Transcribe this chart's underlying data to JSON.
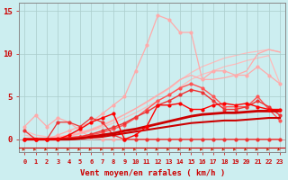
{
  "title": "",
  "xlabel": "Vent moyen/en rafales ( km/h )",
  "ylabel": "",
  "background_color": "#cceef0",
  "grid_color": "#aacccc",
  "x_values": [
    0,
    1,
    2,
    3,
    4,
    5,
    6,
    7,
    8,
    9,
    10,
    11,
    12,
    13,
    14,
    15,
    16,
    17,
    18,
    19,
    20,
    21,
    22,
    23
  ],
  "yticks": [
    0,
    5,
    10,
    15
  ],
  "ylim": [
    -1.5,
    16
  ],
  "xlim": [
    -0.5,
    23.5
  ],
  "series": [
    {
      "y": [
        1.0,
        0.5,
        0.3,
        0.3,
        0.5,
        0.8,
        1.2,
        1.7,
        2.3,
        2.9,
        3.6,
        4.3,
        5.1,
        5.9,
        6.9,
        7.8,
        8.5,
        9.0,
        9.5,
        9.8,
        10.1,
        10.3,
        10.5,
        10.2
      ],
      "color": "#ffbbbb",
      "linewidth": 0.9,
      "marker": null,
      "zorder": 1
    },
    {
      "y": [
        0.5,
        0.2,
        0.1,
        0.2,
        0.4,
        0.6,
        1.0,
        1.4,
        1.9,
        2.5,
        3.1,
        3.8,
        4.5,
        5.2,
        6.1,
        7.0,
        7.6,
        8.0,
        8.5,
        8.8,
        9.2,
        9.5,
        9.8,
        6.5
      ],
      "color": "#ffbbbb",
      "linewidth": 0.9,
      "marker": null,
      "zorder": 1
    },
    {
      "y": [
        0.0,
        0.0,
        0.0,
        0.5,
        1.0,
        1.5,
        2.0,
        3.0,
        4.0,
        5.0,
        8.0,
        11.0,
        14.5,
        14.0,
        12.5,
        12.5,
        7.0,
        8.0,
        8.0,
        7.5,
        7.5,
        8.5,
        7.5,
        6.5
      ],
      "color": "#ffaaaa",
      "linewidth": 0.9,
      "marker": "o",
      "markersize": 2.0,
      "zorder": 2
    },
    {
      "y": [
        0.0,
        0.0,
        0.1,
        0.2,
        0.4,
        0.7,
        1.1,
        1.6,
        2.2,
        2.9,
        3.6,
        4.4,
        5.2,
        6.0,
        7.0,
        7.5,
        7.0,
        7.0,
        7.2,
        7.5,
        8.0,
        10.0,
        10.5,
        10.2
      ],
      "color": "#ffaaaa",
      "linewidth": 0.9,
      "marker": null,
      "zorder": 2
    },
    {
      "y": [
        0.0,
        0.0,
        0.0,
        0.1,
        0.2,
        0.3,
        0.5,
        0.8,
        1.2,
        1.7,
        2.5,
        3.5,
        4.5,
        5.2,
        6.0,
        6.5,
        6.0,
        5.0,
        3.8,
        3.8,
        3.8,
        5.0,
        3.5,
        2.2
      ],
      "color": "#ff5555",
      "linewidth": 1.0,
      "marker": "o",
      "markersize": 2.0,
      "zorder": 3
    },
    {
      "y": [
        0.0,
        0.0,
        0.0,
        0.1,
        0.2,
        0.3,
        0.6,
        1.0,
        1.4,
        1.9,
        2.6,
        3.2,
        4.0,
        4.5,
        5.2,
        5.8,
        5.5,
        4.5,
        3.5,
        3.5,
        3.8,
        4.5,
        3.8,
        2.8
      ],
      "color": "#ee3333",
      "linewidth": 1.0,
      "marker": "o",
      "markersize": 2.0,
      "zorder": 3
    },
    {
      "y": [
        0.0,
        0.0,
        0.0,
        0.0,
        0.0,
        0.1,
        0.2,
        0.3,
        0.5,
        0.7,
        0.9,
        1.1,
        1.3,
        1.5,
        1.7,
        1.9,
        2.0,
        2.1,
        2.2,
        2.2,
        2.3,
        2.4,
        2.5,
        2.5
      ],
      "color": "#cc0000",
      "linewidth": 1.5,
      "marker": null,
      "zorder": 4
    },
    {
      "y": [
        0.0,
        0.0,
        0.0,
        0.0,
        0.0,
        0.1,
        0.3,
        0.5,
        0.7,
        1.0,
        1.2,
        1.5,
        1.8,
        2.1,
        2.4,
        2.7,
        2.9,
        3.0,
        3.1,
        3.1,
        3.2,
        3.3,
        3.3,
        3.3
      ],
      "color": "#cc0000",
      "linewidth": 2.0,
      "marker": null,
      "zorder": 4
    },
    {
      "y": [
        0.0,
        0.0,
        0.0,
        0.0,
        0.5,
        1.2,
        2.0,
        2.5,
        3.0,
        0.0,
        0.5,
        1.5,
        4.0,
        4.0,
        4.2,
        3.5,
        3.5,
        4.0,
        4.2,
        4.0,
        4.2,
        3.8,
        3.5,
        3.5
      ],
      "color": "#ff0000",
      "linewidth": 1.0,
      "marker": "o",
      "markersize": 2.0,
      "zorder": 5
    },
    {
      "y": [
        1.5,
        2.8,
        1.5,
        2.5,
        2.0,
        1.0,
        0.2,
        0.0,
        0.0,
        0.0,
        0.0,
        0.0,
        0.0,
        0.0,
        0.0,
        0.0,
        0.0,
        0.0,
        0.0,
        0.0,
        0.0,
        0.0,
        0.0,
        0.0
      ],
      "color": "#ffaaaa",
      "linewidth": 0.9,
      "marker": "o",
      "markersize": 2.0,
      "zorder": 2
    },
    {
      "y": [
        1.0,
        0.0,
        0.0,
        2.0,
        2.0,
        1.5,
        2.5,
        2.0,
        0.5,
        0.0,
        0.0,
        0.0,
        0.0,
        0.0,
        0.0,
        0.0,
        0.0,
        0.0,
        0.0,
        0.0,
        0.0,
        0.0,
        0.0,
        0.0
      ],
      "color": "#ee3333",
      "linewidth": 0.9,
      "marker": "o",
      "markersize": 2.0,
      "zorder": 3
    }
  ],
  "arrow_color": "#cc2200",
  "xlabel_color": "#cc0000",
  "ytick_color": "#cc0000",
  "xtick_color": "#cc0000",
  "axis_color": "#888888",
  "xline_color": "#cc0000"
}
